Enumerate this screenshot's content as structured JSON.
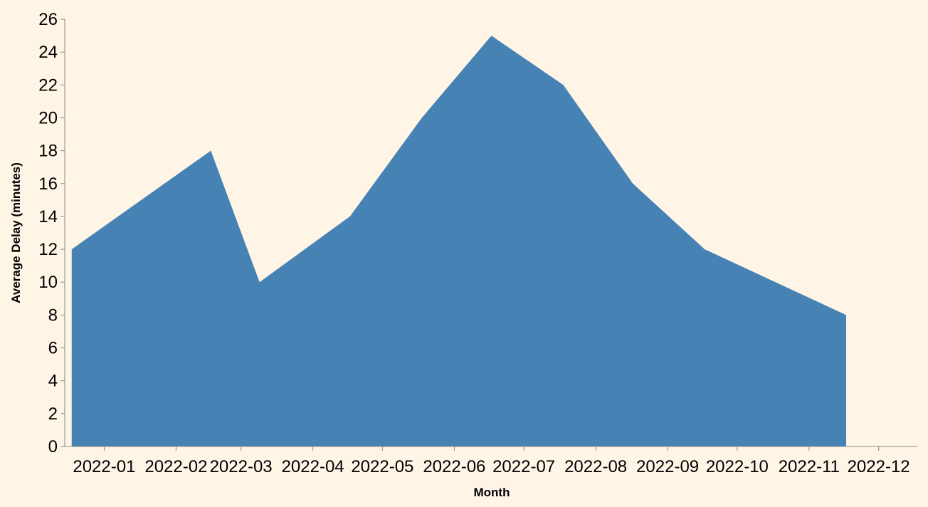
{
  "chart_data": {
    "type": "area",
    "x_label": "Month",
    "y_label": "Average Delay (minutes)",
    "x": [
      "2021-12-18",
      "2022-02-16",
      "2022-03-09",
      "2022-04-17",
      "2022-05-18",
      "2022-06-17",
      "2022-07-18",
      "2022-08-17",
      "2022-09-17",
      "2022-11-17"
    ],
    "series": [
      {
        "name": "Average Delay",
        "color": "#4682b4",
        "values": [
          12,
          18,
          10,
          14,
          20,
          25,
          22,
          16,
          12,
          8
        ]
      }
    ],
    "xlim": [
      "2021-12-15",
      "2022-12-18"
    ],
    "xticks": [
      {
        "value": "2022-01-01",
        "label": "2022-01"
      },
      {
        "value": "2022-02-01",
        "label": "2022-02"
      },
      {
        "value": "2022-03-01",
        "label": "2022-03"
      },
      {
        "value": "2022-04-01",
        "label": "2022-04"
      },
      {
        "value": "2022-05-01",
        "label": "2022-05"
      },
      {
        "value": "2022-06-01",
        "label": "2022-06"
      },
      {
        "value": "2022-07-01",
        "label": "2022-07"
      },
      {
        "value": "2022-08-01",
        "label": "2022-08"
      },
      {
        "value": "2022-09-01",
        "label": "2022-09"
      },
      {
        "value": "2022-10-01",
        "label": "2022-10"
      },
      {
        "value": "2022-11-01",
        "label": "2022-11"
      },
      {
        "value": "2022-12-01",
        "label": "2022-12"
      }
    ],
    "ylim": [
      0,
      26
    ],
    "yticks": [
      0,
      2,
      4,
      6,
      8,
      10,
      12,
      14,
      16,
      18,
      20,
      22,
      24,
      26
    ],
    "grid": false
  }
}
